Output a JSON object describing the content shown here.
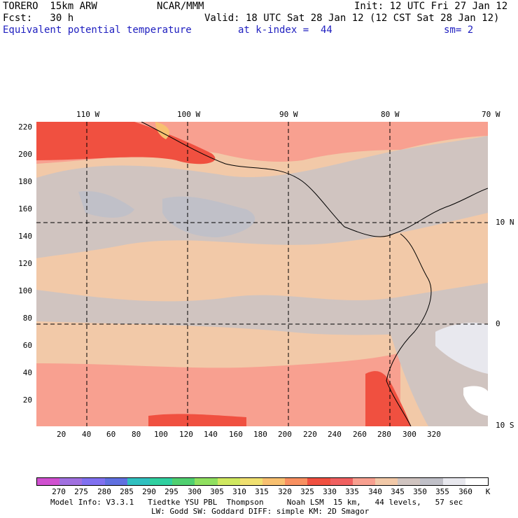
{
  "header": {
    "model": "TORERO  15km ARW",
    "center": "NCAR/MMM",
    "init": "Init: 12 UTC Fri 27 Jan 12",
    "fcst": "Fcst:   30 h",
    "valid": "Valid: 18 UTC Sat 28 Jan 12 (12 CST Sat 28 Jan 12)",
    "field": "Equivalent potential temperature",
    "level": "at k-index =  44",
    "smooth": "sm= 2"
  },
  "map": {
    "lon_labels": [
      "110 W",
      "100 W",
      "90 W",
      "80 W",
      "70 W"
    ],
    "lat_labels": [
      "10 N",
      "0",
      "10 S"
    ],
    "y_ticks": [
      "220",
      "200",
      "180",
      "160",
      "140",
      "120",
      "100",
      "80",
      "60",
      "40",
      "20"
    ],
    "x_ticks": [
      "20",
      "40",
      "60",
      "80",
      "100",
      "120",
      "140",
      "160",
      "180",
      "200",
      "220",
      "240",
      "260",
      "280",
      "300",
      "320"
    ]
  },
  "colorbar": {
    "labels": [
      "270",
      "275",
      "280",
      "285",
      "290",
      "295",
      "300",
      "305",
      "310",
      "315",
      "320",
      "325",
      "330",
      "335",
      "340",
      "345",
      "350",
      "355",
      "360"
    ],
    "unit": "K",
    "colors": [
      "#d050d0",
      "#a070e0",
      "#8070f0",
      "#6070e0",
      "#30c0c0",
      "#30d0a0",
      "#50d070",
      "#90e060",
      "#d0e860",
      "#f0e070",
      "#f8c070",
      "#f89060",
      "#f05040",
      "#f06060",
      "#f8a090",
      "#f2c9a8",
      "#d0c4c0",
      "#c0c0c8",
      "#e8e8ee",
      "#ffffff"
    ]
  },
  "footer": {
    "line1": "Model Info: V3.3.1   Tiedtke YSU PBL  Thompson     Noah LSM  15 km,   44 levels,   57 sec",
    "line2": "LW: Godd SW: Goddard DIFF: simple KM: 2D Smagor"
  }
}
